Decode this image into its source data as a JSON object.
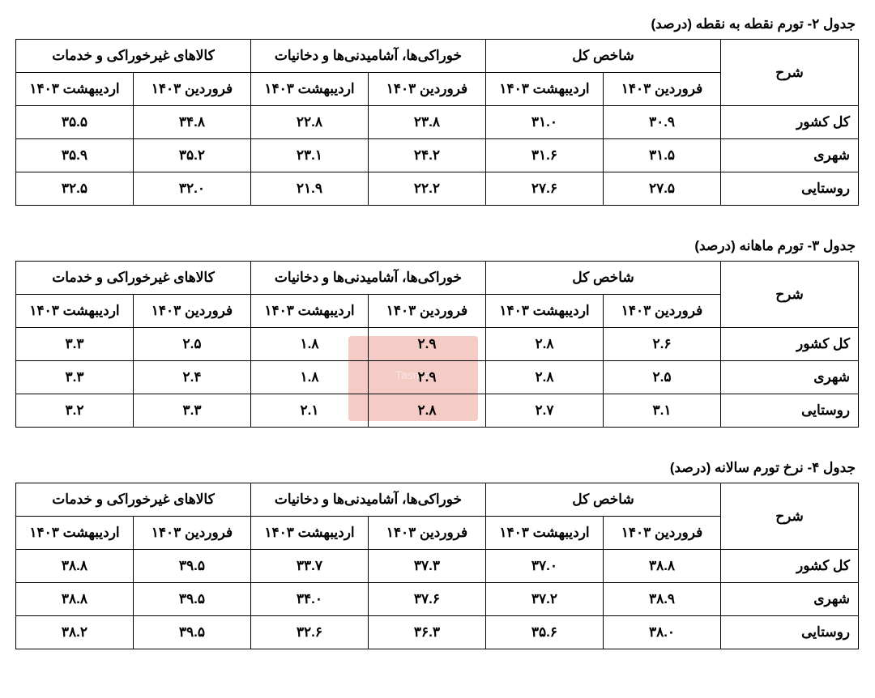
{
  "months": {
    "m1": "فروردین ۱۴۰۳",
    "m2": "اردیبهشت ۱۴۰۳"
  },
  "groups": {
    "total": "شاخص کل",
    "food": "خوراکی‌ها، آشامیدنی‌ها و دخانیات",
    "nonfood": "کالاهای غیرخوراکی و خدمات"
  },
  "row_labels": {
    "desc": "شرح",
    "country": "کل کشور",
    "urban": "شهری",
    "rural": "روستایی"
  },
  "tables": [
    {
      "title": "جدول ۲- تورم نقطه به نقطه (درصد)",
      "rows": {
        "country": {
          "total_m1": "۳۰.۹",
          "total_m2": "۳۱.۰",
          "food_m1": "۲۳.۸",
          "food_m2": "۲۲.۸",
          "nonfood_m1": "۳۴.۸",
          "nonfood_m2": "۳۵.۵"
        },
        "urban": {
          "total_m1": "۳۱.۵",
          "total_m2": "۳۱.۶",
          "food_m1": "۲۴.۲",
          "food_m2": "۲۳.۱",
          "nonfood_m1": "۳۵.۲",
          "nonfood_m2": "۳۵.۹"
        },
        "rural": {
          "total_m1": "۲۷.۵",
          "total_m2": "۲۷.۶",
          "food_m1": "۲۲.۲",
          "food_m2": "۲۱.۹",
          "nonfood_m1": "۳۲.۰",
          "nonfood_m2": "۳۲.۵"
        }
      }
    },
    {
      "title": "جدول ۳- تورم ماهانه (درصد)",
      "rows": {
        "country": {
          "total_m1": "۲.۶",
          "total_m2": "۲.۸",
          "food_m1": "۲.۹",
          "food_m2": "۱.۸",
          "nonfood_m1": "۲.۵",
          "nonfood_m2": "۳.۳"
        },
        "urban": {
          "total_m1": "۲.۵",
          "total_m2": "۲.۸",
          "food_m1": "۲.۹",
          "food_m2": "۱.۸",
          "nonfood_m1": "۲.۴",
          "nonfood_m2": "۳.۳"
        },
        "rural": {
          "total_m1": "۳.۱",
          "total_m2": "۲.۷",
          "food_m1": "۲.۸",
          "food_m2": "۲.۱",
          "nonfood_m1": "۳.۳",
          "nonfood_m2": "۳.۲"
        }
      }
    },
    {
      "title": "جدول ۴- نرخ تورم سالانه (درصد)",
      "rows": {
        "country": {
          "total_m1": "۳۸.۸",
          "total_m2": "۳۷.۰",
          "food_m1": "۳۷.۳",
          "food_m2": "۳۳.۷",
          "nonfood_m1": "۳۹.۵",
          "nonfood_m2": "۳۸.۸"
        },
        "urban": {
          "total_m1": "۳۸.۹",
          "total_m2": "۳۷.۲",
          "food_m1": "۳۷.۶",
          "food_m2": "۳۴.۰",
          "nonfood_m1": "۳۹.۵",
          "nonfood_m2": "۳۸.۸"
        },
        "rural": {
          "total_m1": "۳۸.۰",
          "total_m2": "۳۵.۶",
          "food_m1": "۳۶.۳",
          "food_m2": "۳۲.۶",
          "nonfood_m1": "۳۹.۵",
          "nonfood_m2": "۳۸.۲"
        }
      }
    }
  ],
  "style": {
    "border_color": "#000000",
    "background_color": "#ffffff",
    "font_size_pt": 13,
    "watermark_color": "#e06a5a"
  }
}
